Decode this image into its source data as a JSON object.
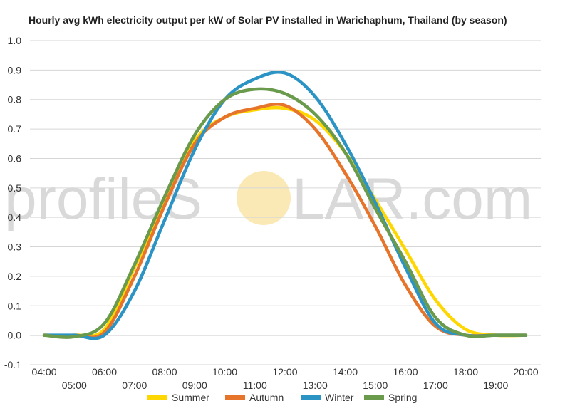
{
  "watermark": {
    "left_text": "profileS",
    "right_text": "LAR.com",
    "sun_color": "#fbe9b5",
    "text_color": "#d9d9d9"
  },
  "chart_data": {
    "type": "line",
    "title": "Hourly avg kWh electricity output per kW of Solar PV installed in Warichaphum, Thailand (by season)",
    "xlabel": "",
    "ylabel": "",
    "x": [
      "04:00",
      "05:00",
      "06:00",
      "07:00",
      "08:00",
      "09:00",
      "10:00",
      "11:00",
      "12:00",
      "13:00",
      "14:00",
      "15:00",
      "16:00",
      "17:00",
      "18:00",
      "19:00",
      "20:00"
    ],
    "ylim": [
      -0.1,
      1.0
    ],
    "y_ticks": [
      "1.0",
      "0.9",
      "0.8",
      "0.7",
      "0.6",
      "0.5",
      "0.4",
      "0.3",
      "0.2",
      "0.1",
      "0.0",
      "-0.1"
    ],
    "grid": true,
    "legend_position": "bottom",
    "series": [
      {
        "name": "Summer",
        "color": "#ffd700",
        "values": [
          0.0,
          0.0,
          0.02,
          0.23,
          0.45,
          0.66,
          0.74,
          0.765,
          0.77,
          0.73,
          0.62,
          0.46,
          0.29,
          0.12,
          0.02,
          0.0,
          0.0
        ]
      },
      {
        "name": "Autumn",
        "color": "#e6742a",
        "values": [
          0.0,
          0.0,
          0.01,
          0.2,
          0.44,
          0.65,
          0.74,
          0.77,
          0.78,
          0.7,
          0.55,
          0.37,
          0.17,
          0.03,
          0.0,
          0.0,
          0.0
        ]
      },
      {
        "name": "Winter",
        "color": "#2b94c4",
        "values": [
          0.0,
          0.0,
          0.0,
          0.15,
          0.39,
          0.63,
          0.8,
          0.87,
          0.89,
          0.81,
          0.65,
          0.45,
          0.23,
          0.04,
          0.0,
          0.0,
          0.0
        ]
      },
      {
        "name": "Spring",
        "color": "#6a9a4c",
        "values": [
          0.0,
          -0.005,
          0.04,
          0.24,
          0.47,
          0.68,
          0.8,
          0.835,
          0.82,
          0.75,
          0.62,
          0.43,
          0.25,
          0.06,
          0.0,
          0.0,
          0.0
        ]
      }
    ]
  }
}
